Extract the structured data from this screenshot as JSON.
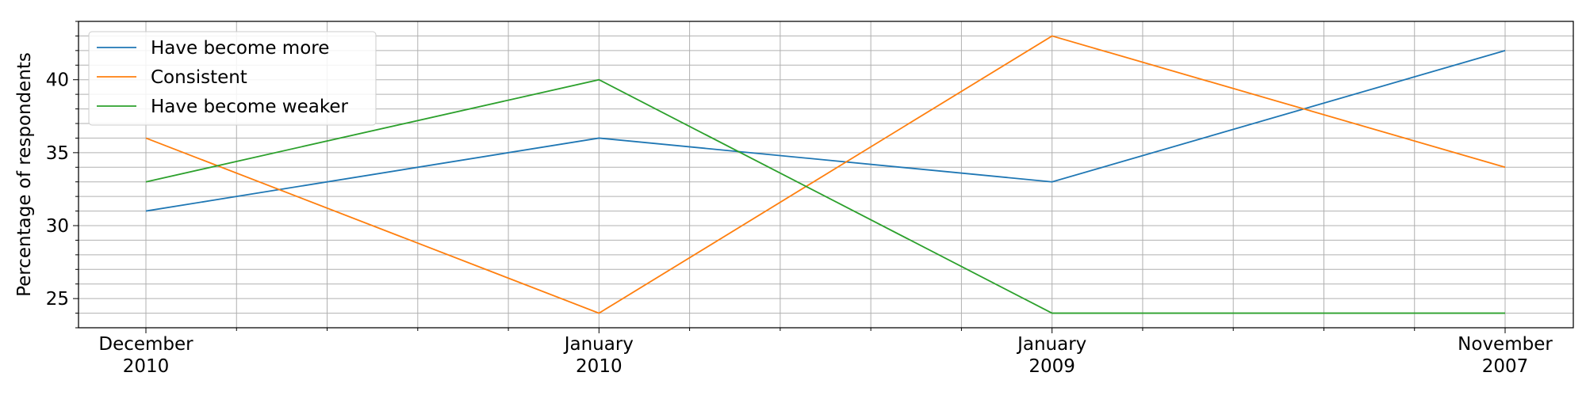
{
  "chart_data": {
    "type": "line",
    "title": "",
    "xlabel": "",
    "ylabel": "Percentage of respondents",
    "categories": [
      [
        "December",
        "2010"
      ],
      [
        "January",
        "2010"
      ],
      [
        "January",
        "2009"
      ],
      [
        "November",
        "2007"
      ]
    ],
    "series": [
      {
        "name": "Have become more",
        "color": "#1f77b4",
        "values": [
          31,
          36,
          33,
          42
        ]
      },
      {
        "name": "Consistent",
        "color": "#ff7f0e",
        "values": [
          36,
          24,
          43,
          34
        ]
      },
      {
        "name": "Have become weaker",
        "color": "#2ca02c",
        "values": [
          33,
          40,
          24,
          24
        ]
      }
    ],
    "ylim": [
      23,
      44
    ],
    "y_ticks": [
      25,
      30,
      35,
      40
    ],
    "grid": true,
    "legend_position": "top-left"
  }
}
